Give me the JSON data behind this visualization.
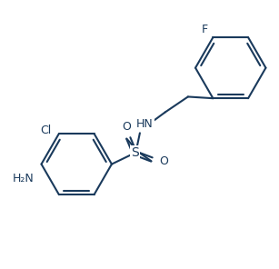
{
  "bg_color": "#ffffff",
  "line_color": "#1a3a5c",
  "line_width": 1.5,
  "font_size": 9,
  "fig_width": 3.07,
  "fig_height": 2.96,
  "dpi": 100,
  "xlim": [
    0,
    7.5
  ],
  "ylim": [
    0,
    7.2
  ]
}
